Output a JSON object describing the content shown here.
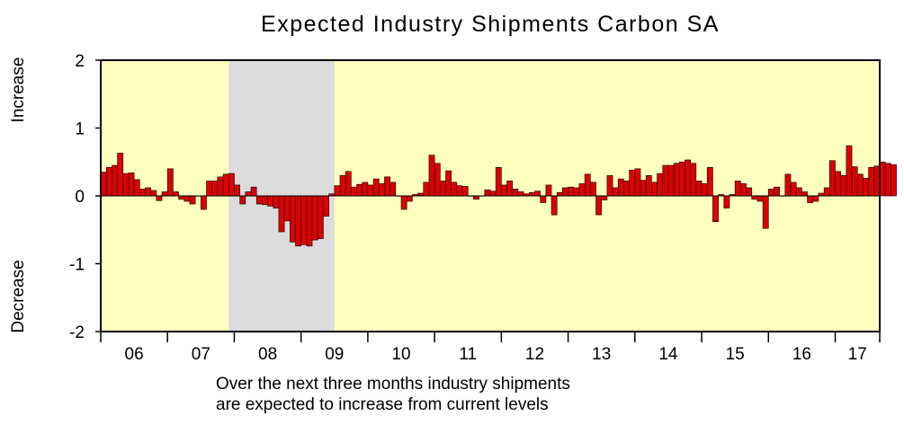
{
  "chart_data": {
    "type": "bar",
    "title": "Expected Industry Shipments Carbon SA",
    "ylim": [
      -2,
      2
    ],
    "y_ticks": [
      "2",
      "1",
      "0",
      "-1",
      "-2"
    ],
    "y_tick_values": [
      2,
      1,
      0,
      -1,
      -2
    ],
    "ylabel_top": "Increase",
    "ylabel_bottom": "Decrease",
    "caption": [
      "Over the next three months industry shipments",
      "are expected to increase from current levels"
    ],
    "x_start": "2006-01",
    "x_end": "2017-08",
    "year_labels": [
      "06",
      "07",
      "08",
      "09",
      "10",
      "11",
      "12",
      "13",
      "14",
      "15",
      "16",
      "17"
    ],
    "recession_shading": {
      "start": "2007-12",
      "end": "2009-06"
    },
    "colors": {
      "plot_background": "#ffffc0",
      "shading": "#dcdcdc",
      "bar_fill": "#dd0000",
      "bar_stroke": "#000000"
    },
    "values": [
      0.35,
      0.42,
      0.45,
      0.63,
      0.33,
      0.34,
      0.24,
      0.1,
      0.12,
      0.08,
      -0.07,
      0.06,
      0.4,
      0.06,
      -0.05,
      -0.08,
      -0.12,
      0.0,
      -0.2,
      0.22,
      0.22,
      0.28,
      0.32,
      0.33,
      0.16,
      -0.12,
      0.06,
      0.13,
      -0.12,
      -0.13,
      -0.15,
      -0.18,
      -0.53,
      -0.37,
      -0.68,
      -0.74,
      -0.72,
      -0.74,
      -0.65,
      -0.63,
      -0.3,
      0.03,
      0.15,
      0.3,
      0.36,
      0.13,
      0.17,
      0.2,
      0.16,
      0.25,
      0.18,
      0.28,
      0.2,
      0.0,
      -0.2,
      -0.08,
      0.02,
      0.04,
      0.2,
      0.6,
      0.48,
      0.22,
      0.37,
      0.2,
      0.15,
      0.14,
      0.0,
      -0.05,
      0.0,
      0.09,
      0.07,
      0.42,
      0.16,
      0.22,
      0.1,
      0.06,
      0.03,
      0.05,
      0.07,
      -0.1,
      0.16,
      -0.28,
      0.05,
      0.12,
      0.13,
      0.12,
      0.18,
      0.32,
      0.2,
      -0.28,
      -0.06,
      0.3,
      0.12,
      0.25,
      0.22,
      0.38,
      0.4,
      0.23,
      0.3,
      0.2,
      0.33,
      0.45,
      0.45,
      0.48,
      0.5,
      0.53,
      0.48,
      0.22,
      0.18,
      0.42,
      -0.38,
      0.02,
      -0.18,
      0.02,
      0.22,
      0.18,
      0.12,
      -0.05,
      -0.08,
      -0.48,
      0.1,
      0.13,
      0.0,
      0.32,
      0.2,
      0.12,
      0.06,
      -0.1,
      -0.08,
      0.04,
      0.12,
      0.52,
      0.36,
      0.3,
      0.74,
      0.43,
      0.32,
      0.26,
      0.42,
      0.44,
      0.5,
      0.48,
      0.46
    ]
  }
}
